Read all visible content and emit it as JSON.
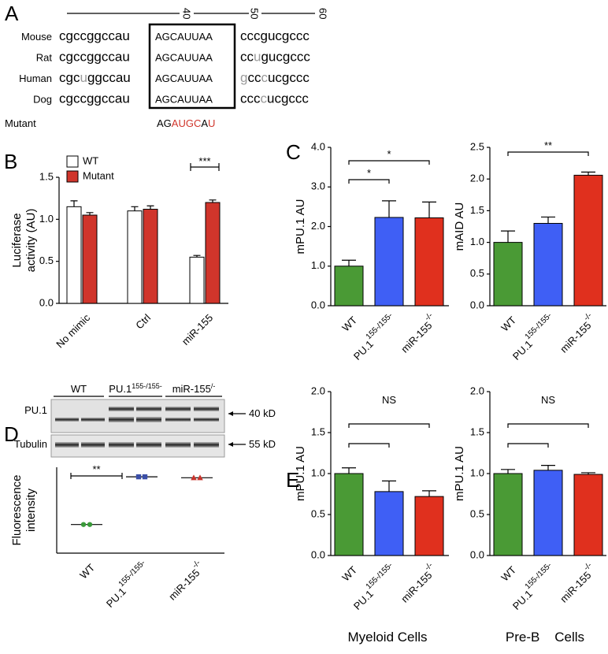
{
  "alignment": {
    "panel": "A",
    "ruler": [
      "40",
      "50",
      "60"
    ],
    "rows": [
      {
        "species": "Mouse",
        "left": [
          {
            "text": "cgccggccau"
          }
        ],
        "site": "AGCAUUAA",
        "right": [
          {
            "text": "cccgucgccc"
          }
        ]
      },
      {
        "species": "Rat",
        "left": [
          {
            "text": "cgccggccau"
          }
        ],
        "site": "AGCAUUAA",
        "right": [
          {
            "text": "cc"
          },
          {
            "text": "u",
            "color": "#9a9a9a"
          },
          {
            "text": "gucgccc"
          }
        ]
      },
      {
        "species": "Human",
        "left": [
          {
            "text": "cgc"
          },
          {
            "text": "u",
            "color": "#9a9a9a"
          },
          {
            "text": "ggccau"
          }
        ],
        "site": "AGCAUUAA",
        "right": [
          {
            "text": "g",
            "color": "#9a9a9a"
          },
          {
            "text": "cc"
          },
          {
            "text": "c",
            "color": "#9a9a9a"
          },
          {
            "text": "ucgccc"
          }
        ]
      },
      {
        "species": "Dog",
        "left": [
          {
            "text": "cgccggccau"
          }
        ],
        "site": "AGCAUUAA",
        "right": [
          {
            "text": "ccc"
          },
          {
            "text": "c",
            "color": "#9a9a9a"
          },
          {
            "text": "ucgccc"
          }
        ]
      }
    ],
    "mutant": {
      "label": "Mutant",
      "color": "#d0352b",
      "sequence": [
        {
          "text": "AG"
        },
        {
          "text": "AUGC",
          "color": "#d0352b"
        },
        {
          "text": "A"
        },
        {
          "text": "U",
          "color": "#d0352b"
        }
      ]
    }
  },
  "blot": {
    "groups": [
      {
        "label": "WT"
      },
      {
        "label": "PU.1",
        "sup": "155-/155-"
      },
      {
        "label": "miR-155",
        "sup": "/-"
      }
    ],
    "rows": [
      "PU.1",
      "Tubulin"
    ],
    "sizes": [
      "40 kD",
      "55 kD"
    ]
  },
  "chart_data": [
    {
      "type": "grouped-bar",
      "panel": "B",
      "ylabel": [
        "Luciferase",
        "activity (AU)"
      ],
      "categories": [
        "No mimic",
        "Ctrl",
        "miR-155"
      ],
      "series": [
        {
          "name": "WT",
          "color": "#ffffff",
          "values": [
            1.15,
            1.1,
            0.55
          ],
          "errors": [
            0.07,
            0.05,
            0.02
          ]
        },
        {
          "name": "Mutant",
          "color": "#d0352b",
          "values": [
            1.05,
            1.12,
            1.2
          ],
          "errors": [
            0.03,
            0.04,
            0.03
          ]
        }
      ],
      "ylim": [
        0,
        1.5
      ],
      "yticks": [
        {
          "value": 0,
          "label": "0.0"
        },
        {
          "value": 0.5,
          "label": "0.5"
        },
        {
          "value": 1,
          "label": "1.0"
        },
        {
          "value": 1.5,
          "label": "1.5"
        }
      ],
      "legend": "upper left",
      "annotations": [
        {
          "text": "***",
          "category": 2
        }
      ]
    },
    {
      "type": "bar",
      "panel": "C",
      "ylabel": [
        "mPU.1 AU"
      ],
      "categories": [
        "WT",
        "PU.1",
        "miR-155"
      ],
      "category_superscripts": [
        null,
        "155-/155-",
        "-/-"
      ],
      "values": [
        1.0,
        2.23,
        2.22
      ],
      "errors": [
        0.15,
        0.42,
        0.4
      ],
      "colors": [
        "#4a9a35",
        "#3f5ff5",
        "#e0301e"
      ],
      "ylim": [
        0,
        4
      ],
      "yticks": [
        {
          "value": 0,
          "label": "0.0"
        },
        {
          "value": 1,
          "label": "1.0"
        },
        {
          "value": 2,
          "label": "2.0"
        },
        {
          "value": 3,
          "label": "3.0"
        },
        {
          "value": 4,
          "label": "4.0"
        }
      ],
      "annotations": [
        {
          "text": "*",
          "from": 0,
          "to": 1
        },
        {
          "text": "*",
          "from": 0,
          "to": 2
        }
      ]
    },
    {
      "type": "bar",
      "ylabel": [
        "mAID AU"
      ],
      "categories": [
        "WT",
        "PU.1",
        "miR-155"
      ],
      "category_superscripts": [
        null,
        "155-/155-",
        "-/-"
      ],
      "values": [
        1.0,
        1.3,
        2.06
      ],
      "errors": [
        0.18,
        0.1,
        0.05
      ],
      "colors": [
        "#4a9a35",
        "#3f5ff5",
        "#e0301e"
      ],
      "ylim": [
        0,
        2.5
      ],
      "yticks": [
        {
          "value": 0,
          "label": "0.0"
        },
        {
          "value": 0.5,
          "label": "0.5"
        },
        {
          "value": 1,
          "label": "1.0"
        },
        {
          "value": 1.5,
          "label": "1.5"
        },
        {
          "value": 2,
          "label": "2.0"
        },
        {
          "value": 2.5,
          "label": "2.5"
        }
      ],
      "annotations": [
        {
          "text": "**",
          "from": 0,
          "to": 2
        }
      ]
    },
    {
      "type": "dot",
      "panel": "D",
      "ylabel": [
        "Fluorescence",
        "intensity"
      ],
      "categories": [
        "WT",
        "PU.1",
        "miR-155"
      ],
      "category_superscripts": [
        null,
        "155-/155-",
        "-/-"
      ],
      "values": [
        [
          1.0,
          1.0
        ],
        [
          2.0,
          2.0
        ],
        [
          1.98,
          1.98
        ]
      ],
      "colors": [
        "#3a9a3a",
        "#3b4fa8",
        "#c8332b"
      ],
      "markers": [
        "circle",
        "square",
        "triangle"
      ],
      "ylim": [
        0.4,
        2.2
      ],
      "annotations": [
        {
          "text": "**",
          "from": 0,
          "to": 1
        }
      ]
    },
    {
      "type": "bar",
      "panel": "E",
      "ylabel": [
        "mPU.1 AU"
      ],
      "xlabel": "Myeloid Cells",
      "categories": [
        "WT",
        "PU.1",
        "miR-155"
      ],
      "category_superscripts": [
        null,
        "155-/155-",
        "-/-"
      ],
      "values": [
        1.0,
        0.78,
        0.72
      ],
      "errors": [
        0.07,
        0.13,
        0.07
      ],
      "colors": [
        "#4a9a35",
        "#3f5ff5",
        "#e0301e"
      ],
      "ylim": [
        0,
        2
      ],
      "yticks": [
        {
          "value": 0,
          "label": "0.0"
        },
        {
          "value": 0.5,
          "label": "0.5"
        },
        {
          "value": 1,
          "label": "1.0"
        },
        {
          "value": 1.5,
          "label": "1.5"
        },
        {
          "value": 2,
          "label": "2.0"
        }
      ],
      "annotations": [
        {
          "from": 0,
          "to": 1
        },
        {
          "from": 0,
          "to": 2
        },
        {
          "text": "NS"
        }
      ]
    },
    {
      "type": "bar",
      "ylabel": [
        "mPU.1 AU"
      ],
      "xlabel": "Pre-B    Cells",
      "categories": [
        "WT",
        "PU.1",
        "miR-155"
      ],
      "category_superscripts": [
        null,
        "155-/155-",
        "-/-"
      ],
      "values": [
        1.0,
        1.04,
        0.99
      ],
      "errors": [
        0.05,
        0.06,
        0.02
      ],
      "colors": [
        "#4a9a35",
        "#3f5ff5",
        "#e0301e"
      ],
      "ylim": [
        0,
        2
      ],
      "yticks": [
        {
          "value": 0,
          "label": "0.0"
        },
        {
          "value": 0.5,
          "label": "0.5"
        },
        {
          "value": 1,
          "label": "1.0"
        },
        {
          "value": 1.5,
          "label": "1.5"
        },
        {
          "value": 2,
          "label": "2.0"
        }
      ],
      "annotations": [
        {
          "from": 0,
          "to": 1
        },
        {
          "from": 0,
          "to": 2
        },
        {
          "text": "NS"
        }
      ]
    }
  ]
}
